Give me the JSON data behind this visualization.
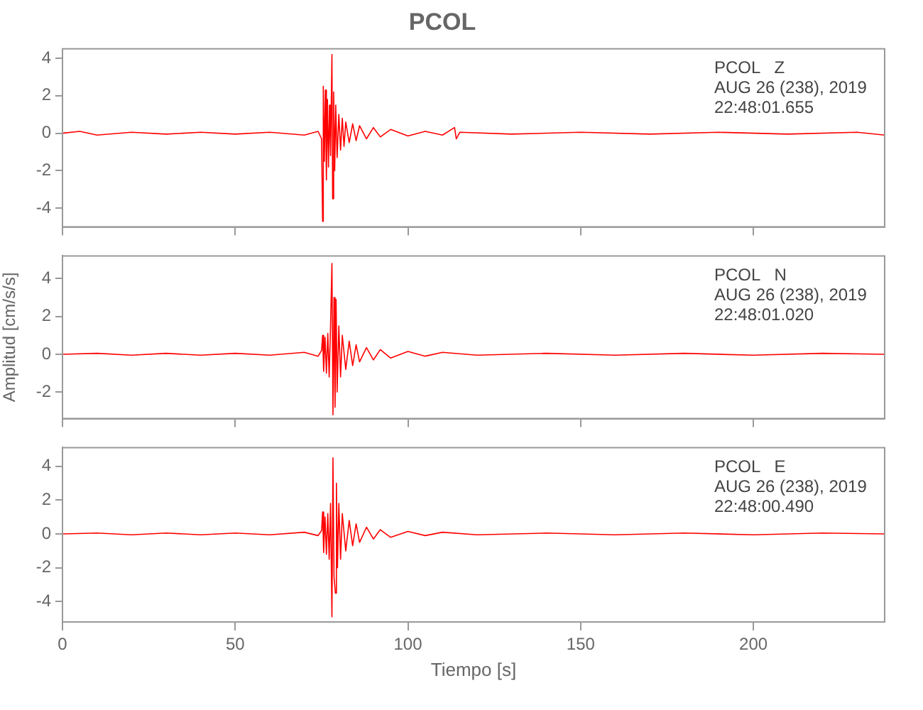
{
  "chart_data": [
    {
      "type": "line",
      "title": "PCOL",
      "annotations": [
        "PCOL   Z",
        "AUG 26 (238), 2019",
        "22:48:01.655"
      ],
      "xlim": [
        0,
        238
      ],
      "xticks": [
        0,
        50,
        100,
        150,
        200
      ],
      "ylim": [
        -5,
        4.5
      ],
      "yticks": [
        -4,
        -2,
        0,
        2,
        4
      ],
      "tick_labels": "y",
      "grid": false,
      "marker": "none",
      "line_style": "solid",
      "series": [
        {
          "color": "#ff0000",
          "x": [
            0,
            5,
            10,
            20,
            30,
            40,
            50,
            60,
            70,
            74,
            75,
            75.3,
            75.5,
            75.8,
            76.1,
            76.4,
            76.7,
            77,
            77.3,
            77.6,
            78,
            78.2,
            78.5,
            78.8,
            79.1,
            79.5,
            80,
            80.5,
            81,
            81.5,
            82,
            83,
            84,
            85,
            86,
            88,
            90,
            92,
            95,
            100,
            105,
            110,
            113.5,
            114,
            115,
            130,
            150,
            170,
            190,
            210,
            230,
            238
          ],
          "values": [
            0,
            0.1,
            -0.1,
            0.05,
            -0.05,
            0.05,
            -0.05,
            0.05,
            -0.1,
            0.1,
            -0.3,
            -4.7,
            2.5,
            -1.5,
            2.3,
            -2.5,
            1.8,
            -1.8,
            1.5,
            -1.2,
            4.2,
            -3.5,
            2.2,
            -2,
            1.5,
            -1.3,
            1,
            -0.9,
            0.8,
            -0.7,
            0.6,
            -0.5,
            0.5,
            -0.4,
            0.4,
            -0.3,
            0.3,
            -0.2,
            0.2,
            -0.15,
            0.1,
            -0.1,
            0.3,
            -0.3,
            0.05,
            -0.05,
            0.05,
            -0.05,
            0.05,
            -0.05,
            0.05,
            -0.1
          ]
        }
      ]
    },
    {
      "type": "line",
      "ylabel": "Amplitud [cm/s/s]",
      "annotations": [
        "PCOL   N",
        "AUG 26 (238), 2019",
        "22:48:01.020"
      ],
      "xlim": [
        0,
        238
      ],
      "xticks": [
        0,
        50,
        100,
        150,
        200
      ],
      "ylim": [
        -3.4,
        5.2
      ],
      "yticks": [
        -2,
        0,
        2,
        4
      ],
      "tick_labels": "y",
      "grid": false,
      "marker": "none",
      "line_style": "solid",
      "series": [
        {
          "color": "#ff0000",
          "x": [
            0,
            10,
            20,
            30,
            40,
            50,
            60,
            70,
            74,
            75,
            75.3,
            75.6,
            76,
            76.4,
            76.8,
            77.2,
            77.6,
            78,
            78.3,
            78.6,
            78.9,
            79.2,
            79.5,
            80,
            80.5,
            81,
            82,
            83,
            84,
            85,
            86,
            88,
            90,
            92,
            95,
            100,
            105,
            110,
            120,
            140,
            160,
            180,
            200,
            220,
            238
          ],
          "values": [
            0,
            0.05,
            -0.05,
            0.05,
            -0.05,
            0.05,
            -0.05,
            0.1,
            -0.1,
            0.2,
            1,
            -0.9,
            0.9,
            -1,
            1.1,
            -1.2,
            1.5,
            4.8,
            -3.2,
            3,
            -2.8,
            2.9,
            -2,
            1.5,
            -1.2,
            1,
            -0.8,
            0.7,
            -0.6,
            0.5,
            -0.4,
            0.35,
            -0.3,
            0.25,
            -0.2,
            0.15,
            -0.1,
            0.1,
            -0.05,
            0.05,
            -0.05,
            0.05,
            -0.05,
            0.05,
            0
          ]
        }
      ]
    },
    {
      "type": "line",
      "xlabel": "Tiempo [s]",
      "annotations": [
        "PCOL   E",
        "AUG 26 (238), 2019",
        "22:48:00.490"
      ],
      "xlim": [
        0,
        238
      ],
      "xticks": [
        0,
        50,
        100,
        150,
        200
      ],
      "ylim": [
        -5.2,
        5.1
      ],
      "yticks": [
        -4,
        -2,
        0,
        2,
        4
      ],
      "grid": false,
      "marker": "none",
      "line_style": "solid",
      "series": [
        {
          "color": "#ff0000",
          "x": [
            0,
            10,
            20,
            30,
            40,
            50,
            60,
            70,
            74,
            75,
            75.3,
            75.6,
            76,
            76.4,
            76.8,
            77.2,
            77.6,
            78,
            78.3,
            78.6,
            79,
            79.3,
            79.6,
            80,
            80.5,
            81,
            82,
            83,
            84,
            85,
            86,
            88,
            90,
            92,
            95,
            100,
            105,
            110,
            120,
            140,
            160,
            180,
            200,
            220,
            238
          ],
          "values": [
            0,
            0.05,
            -0.05,
            0.05,
            -0.05,
            0.05,
            -0.05,
            0.1,
            -0.1,
            0.2,
            1.3,
            -1.1,
            1,
            -1.2,
            1.2,
            -1.5,
            1.8,
            -4.9,
            4.5,
            -2.5,
            -3.5,
            3,
            -2,
            1.8,
            -1.5,
            1.2,
            -1,
            0.8,
            -0.7,
            0.6,
            -0.5,
            0.4,
            -0.3,
            0.25,
            -0.2,
            0.15,
            -0.1,
            0.1,
            -0.05,
            0.05,
            -0.05,
            0.05,
            -0.05,
            0.05,
            0
          ]
        }
      ]
    }
  ]
}
